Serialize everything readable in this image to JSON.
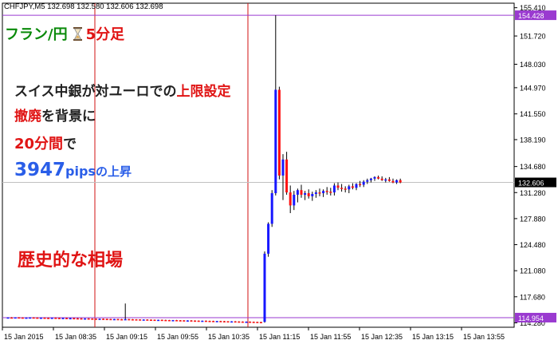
{
  "header": {
    "symbol_info": "CHFJPY,M5  132.698 132.580 132.606 132.698"
  },
  "overlay": {
    "title_pair": "フラン/円",
    "title_timeframe": "5分足",
    "line1_prefix": "スイス中銀が対ユーロでの",
    "line1_highlight": "上限設定",
    "line2_highlight": "撤廃",
    "line2_suffix": "を背景に",
    "line3_highlight": "20分間",
    "line3_suffix": "で",
    "line4_number": "3947",
    "line4_unit": "pips",
    "line4_suffix": "の上昇",
    "line5": "歴史的な相場"
  },
  "chart_data": {
    "type": "candlestick",
    "symbol": "CHFJPY",
    "timeframe": "M5",
    "y_ticks": [
      "155.410",
      "151.720",
      "148.030",
      "144.970",
      "141.550",
      "138.190",
      "134.680",
      "131.280",
      "127.880",
      "124.480",
      "121.080",
      "117.680",
      "114.280"
    ],
    "y_range": [
      113.7,
      156.0
    ],
    "x_labels": [
      "15 Jan 2015",
      "15 Jan 08:35",
      "15 Jan 09:15",
      "15 Jan 09:55",
      "15 Jan 10:35",
      "15 Jan 11:15",
      "15 Jan 11:55",
      "15 Jan 12:35",
      "15 Jan 13:15",
      "15 Jan 13:55"
    ],
    "price_labels": {
      "high": "154.428",
      "current": "132.606",
      "low": "114.954"
    },
    "levels": {
      "high": 154.428,
      "current": 132.606,
      "low": 114.954
    },
    "period_separators": [
      "15 Jan 09:15",
      "15 Jan 11:15"
    ],
    "colors": {
      "up": "#1717ff",
      "down": "#ff1010",
      "wick": "#000000",
      "current_line": "#c0c0c0",
      "level_line": "#9a3ad0",
      "separator": "#d01010"
    },
    "candles": [
      [
        114.95,
        115.0,
        114.93,
        114.98
      ],
      [
        114.98,
        115.02,
        114.95,
        114.97
      ],
      [
        114.97,
        115.0,
        114.94,
        114.99
      ],
      [
        114.99,
        115.02,
        114.96,
        114.97
      ],
      [
        114.97,
        114.99,
        114.92,
        114.95
      ],
      [
        114.95,
        114.98,
        114.92,
        114.96
      ],
      [
        114.96,
        115.0,
        114.93,
        114.98
      ],
      [
        114.98,
        115.01,
        114.94,
        114.96
      ],
      [
        114.96,
        114.99,
        114.91,
        114.94
      ],
      [
        114.94,
        114.97,
        114.9,
        114.95
      ],
      [
        114.95,
        114.98,
        114.92,
        114.93
      ],
      [
        114.93,
        114.96,
        114.89,
        114.92
      ],
      [
        114.92,
        114.95,
        114.88,
        114.94
      ],
      [
        114.94,
        114.97,
        114.91,
        114.92
      ],
      [
        114.92,
        114.94,
        114.87,
        114.9
      ],
      [
        114.9,
        114.93,
        114.86,
        114.91
      ],
      [
        114.91,
        114.93,
        114.86,
        114.88
      ],
      [
        114.88,
        114.91,
        114.84,
        114.89
      ],
      [
        114.89,
        114.92,
        114.85,
        114.87
      ],
      [
        114.87,
        114.9,
        114.83,
        114.86
      ],
      [
        114.86,
        114.89,
        114.82,
        114.84
      ],
      [
        114.84,
        114.87,
        114.8,
        114.85
      ],
      [
        114.85,
        114.88,
        114.81,
        114.83
      ],
      [
        114.83,
        114.86,
        114.79,
        114.82
      ],
      [
        114.82,
        114.84,
        114.78,
        114.8
      ],
      [
        114.8,
        114.83,
        114.77,
        114.81
      ],
      [
        114.81,
        114.84,
        114.78,
        114.79
      ],
      [
        114.79,
        114.82,
        114.76,
        114.78
      ],
      [
        114.78,
        114.8,
        114.74,
        114.76
      ],
      [
        114.76,
        114.79,
        114.73,
        114.77
      ],
      [
        114.77,
        114.8,
        114.74,
        114.75
      ],
      [
        114.75,
        114.78,
        114.72,
        114.74
      ],
      [
        114.74,
        116.8,
        114.72,
        114.76
      ],
      [
        114.76,
        114.79,
        114.72,
        114.74
      ],
      [
        114.74,
        114.77,
        114.71,
        114.73
      ],
      [
        114.73,
        114.76,
        114.7,
        114.72
      ],
      [
        114.72,
        114.74,
        114.68,
        114.7
      ],
      [
        114.7,
        114.73,
        114.67,
        114.71
      ],
      [
        114.71,
        114.74,
        114.68,
        114.69
      ],
      [
        114.69,
        114.72,
        114.66,
        114.68
      ],
      [
        114.68,
        114.7,
        114.64,
        114.66
      ],
      [
        114.66,
        114.69,
        114.63,
        114.67
      ],
      [
        114.67,
        114.7,
        114.64,
        114.65
      ],
      [
        114.65,
        114.68,
        114.62,
        114.64
      ],
      [
        114.64,
        114.66,
        114.6,
        114.62
      ],
      [
        114.62,
        114.65,
        114.59,
        114.63
      ],
      [
        114.63,
        114.66,
        114.6,
        114.61
      ],
      [
        114.61,
        114.64,
        114.58,
        114.6
      ],
      [
        114.6,
        114.62,
        114.56,
        114.58
      ],
      [
        114.58,
        114.61,
        114.55,
        114.59
      ],
      [
        114.59,
        114.62,
        114.56,
        114.57
      ],
      [
        114.57,
        114.6,
        114.54,
        114.56
      ],
      [
        114.56,
        114.58,
        114.52,
        114.54
      ],
      [
        114.54,
        114.57,
        114.51,
        114.55
      ],
      [
        114.55,
        114.58,
        114.52,
        114.53
      ],
      [
        114.53,
        114.56,
        114.5,
        114.52
      ],
      [
        114.52,
        114.55,
        114.48,
        114.5
      ],
      [
        114.5,
        114.53,
        114.47,
        114.51
      ],
      [
        114.51,
        114.54,
        114.48,
        114.49
      ],
      [
        114.49,
        114.52,
        114.46,
        114.48
      ],
      [
        114.48,
        114.5,
        114.44,
        114.46
      ],
      [
        114.46,
        114.49,
        114.43,
        114.47
      ],
      [
        114.47,
        114.5,
        114.44,
        114.45
      ],
      [
        114.45,
        114.48,
        114.42,
        114.44
      ],
      [
        114.44,
        114.46,
        114.4,
        114.42
      ],
      [
        114.42,
        114.45,
        114.39,
        114.43
      ],
      [
        114.43,
        114.46,
        114.4,
        114.41
      ],
      [
        114.41,
        114.44,
        114.38,
        114.4
      ],
      [
        114.4,
        114.42,
        114.36,
        114.38
      ],
      [
        114.38,
        114.41,
        114.35,
        114.37
      ],
      [
        114.4,
        123.6,
        114.3,
        123.3
      ],
      [
        123.3,
        127.4,
        122.9,
        127.2
      ],
      [
        127.2,
        131.6,
        126.8,
        131.2
      ],
      [
        131.2,
        154.43,
        130.9,
        144.7
      ],
      [
        144.7,
        145.1,
        133.0,
        133.5
      ],
      [
        133.5,
        136.3,
        130.3,
        135.6
      ],
      [
        135.6,
        136.6,
        131.0,
        131.3
      ],
      [
        131.3,
        132.2,
        128.6,
        129.6
      ],
      [
        129.6,
        131.5,
        129.0,
        131.0
      ],
      [
        131.0,
        131.8,
        130.0,
        131.6
      ],
      [
        131.6,
        132.3,
        130.6,
        131.0
      ],
      [
        131.0,
        131.5,
        130.3,
        131.2
      ],
      [
        131.2,
        131.7,
        130.5,
        130.8
      ],
      [
        130.8,
        131.4,
        130.2,
        131.1
      ],
      [
        131.1,
        131.6,
        130.6,
        131.3
      ],
      [
        131.3,
        131.8,
        130.8,
        131.2
      ],
      [
        131.2,
        131.7,
        130.7,
        131.5
      ],
      [
        131.5,
        132.0,
        131.0,
        131.4
      ],
      [
        131.4,
        131.9,
        130.9,
        131.3
      ],
      [
        131.3,
        132.5,
        130.9,
        132.2
      ],
      [
        132.2,
        132.6,
        131.6,
        131.9
      ],
      [
        131.9,
        132.4,
        131.4,
        131.8
      ],
      [
        131.8,
        132.1,
        131.3,
        131.7
      ],
      [
        131.7,
        132.3,
        131.2,
        132.1
      ],
      [
        132.1,
        132.5,
        131.7,
        131.9
      ],
      [
        131.9,
        132.5,
        131.6,
        132.4
      ],
      [
        132.4,
        132.8,
        132.0,
        132.3
      ],
      [
        132.3,
        132.9,
        132.0,
        132.7
      ],
      [
        132.7,
        133.1,
        132.4,
        132.9
      ],
      [
        132.9,
        133.2,
        132.6,
        133.1
      ],
      [
        133.1,
        133.4,
        132.8,
        133.3
      ],
      [
        133.3,
        133.5,
        133.0,
        133.1
      ],
      [
        133.1,
        133.4,
        132.8,
        132.9
      ],
      [
        132.9,
        133.2,
        132.6,
        133.0
      ],
      [
        133.0,
        133.3,
        132.7,
        132.8
      ],
      [
        132.8,
        133.1,
        132.5,
        132.6
      ],
      [
        132.6,
        133.0,
        132.4,
        132.9
      ],
      [
        132.9,
        133.1,
        132.5,
        132.6
      ]
    ]
  }
}
